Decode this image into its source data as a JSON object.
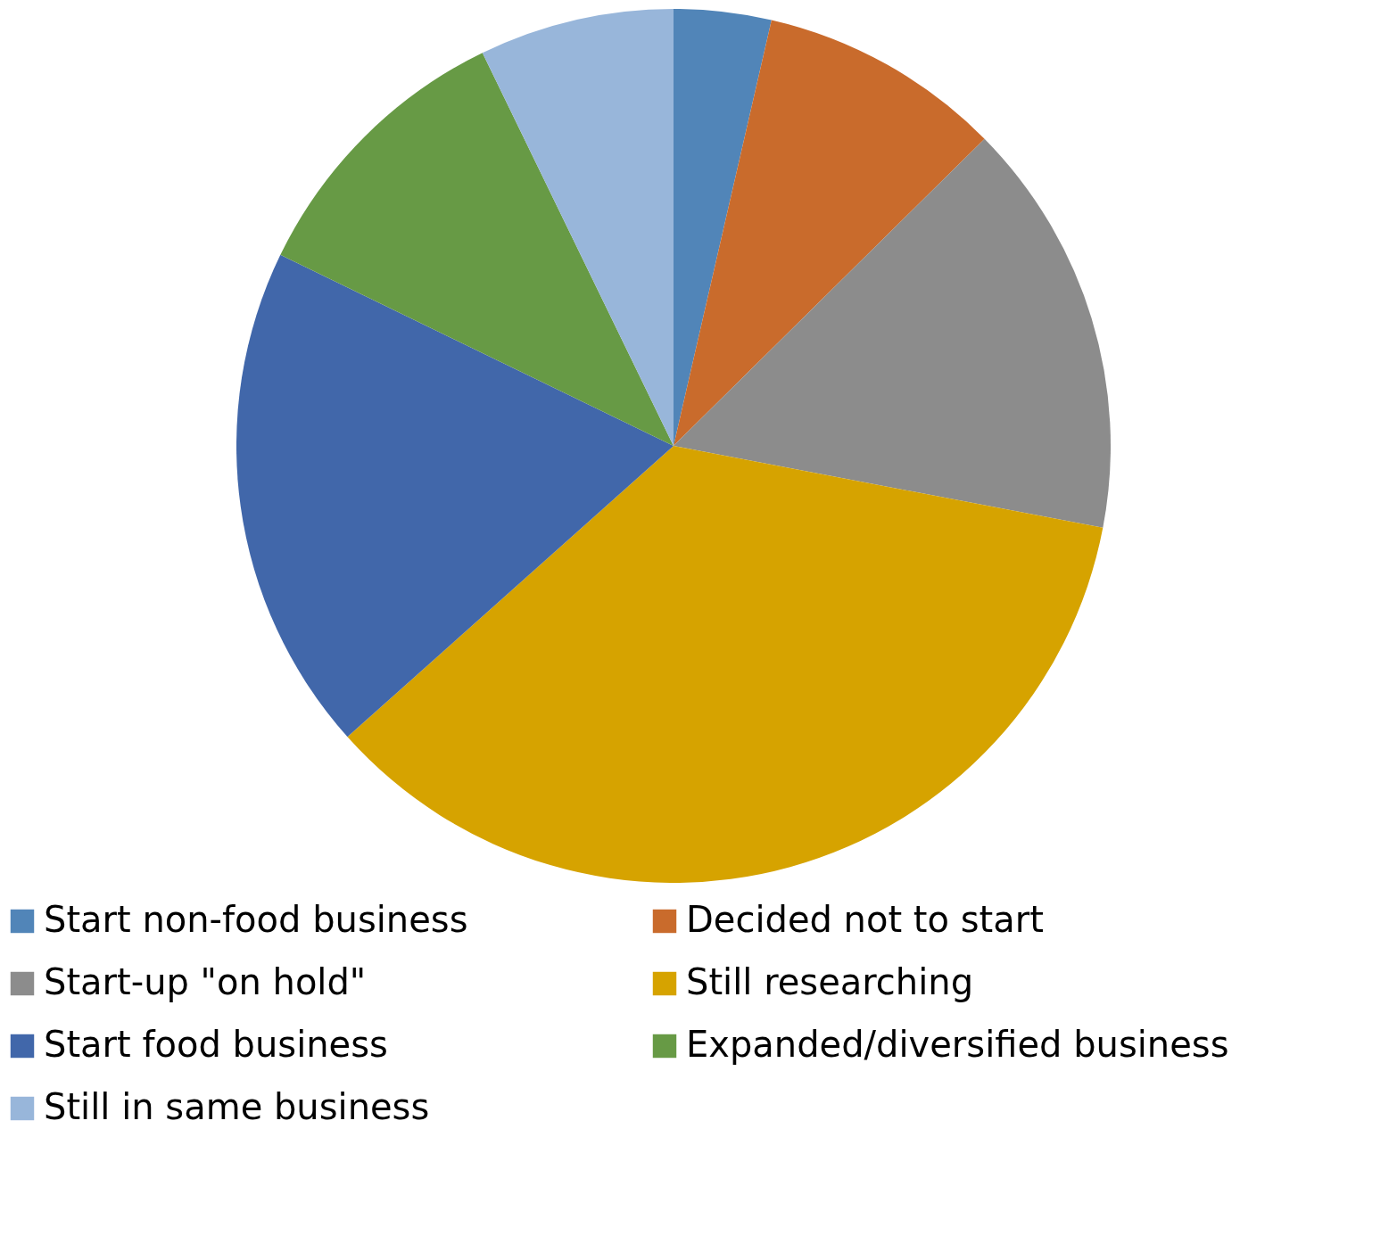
{
  "chart_data": {
    "type": "pie",
    "categories": [
      "Start non-food business",
      "Decided not to start",
      "Start-up \"on hold\"",
      "Still researching",
      "Start food business",
      "Expanded/diversified business",
      "Still in same business"
    ],
    "values": [
      3.6,
      9.0,
      15.4,
      35.4,
      18.8,
      10.6,
      7.2
    ],
    "colors": [
      "#5185b8",
      "#c96b2c",
      "#8c8c8c",
      "#d6a300",
      "#4167aa",
      "#679a45",
      "#98b6da"
    ],
    "legend": "bottom"
  }
}
